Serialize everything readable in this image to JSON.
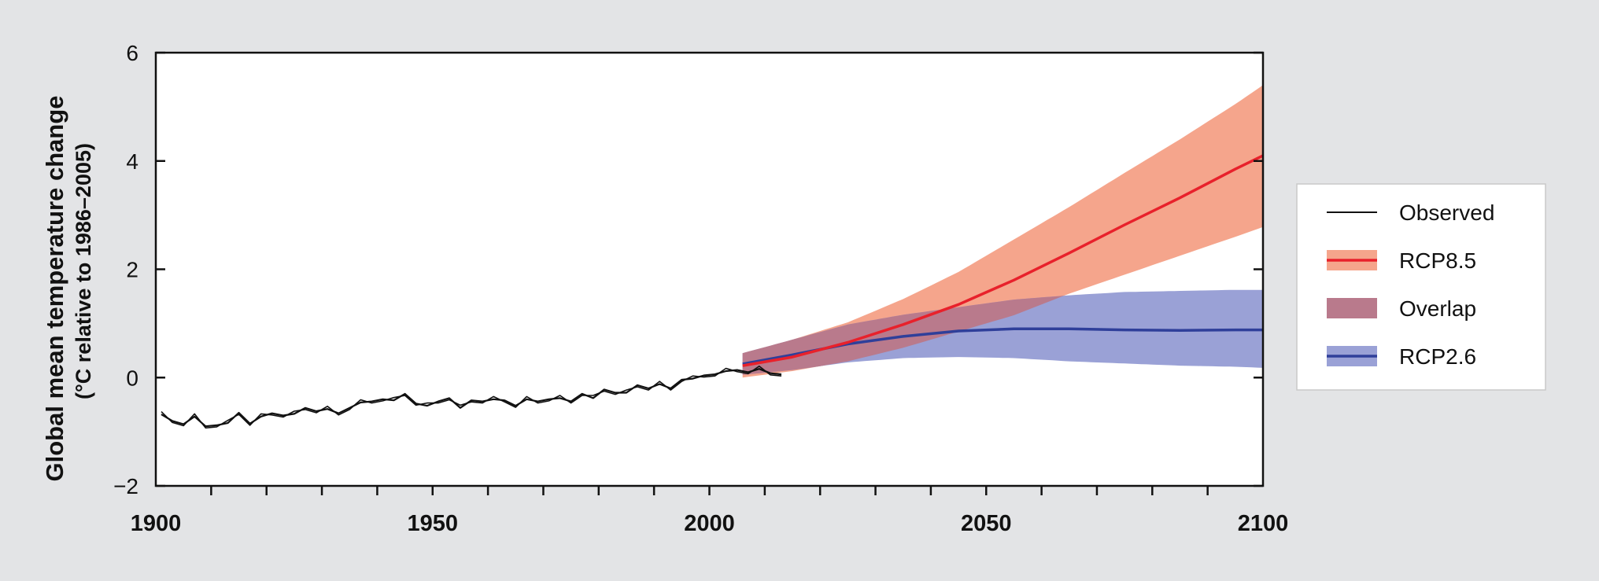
{
  "chart_data": {
    "type": "area",
    "ylabel": "Global mean temperature change",
    "ylabel_sub": "(°C relative to 1986–2005)",
    "xlim": [
      1900,
      2100
    ],
    "ylim": [
      -2,
      6
    ],
    "x_ticks_major": [
      1900,
      1950,
      2000,
      2050,
      2100
    ],
    "x_ticks_minor_step": 10,
    "y_ticks": [
      -2,
      0,
      2,
      4,
      6
    ],
    "y_tick_labels": [
      "−2",
      "0",
      "2",
      "4",
      "6"
    ],
    "grid": false,
    "legend_position": "right",
    "legend": [
      {
        "key": "observed",
        "label": "Observed"
      },
      {
        "key": "rcp85",
        "label": "RCP8.5"
      },
      {
        "key": "overlap",
        "label": "Overlap"
      },
      {
        "key": "rcp26",
        "label": "RCP2.6"
      }
    ],
    "colors": {
      "observed": "#111111",
      "rcp85_line": "#e8212b",
      "rcp85_band": "#f5a58c",
      "rcp26_line": "#2f3f9a",
      "rcp26_band": "#9aa1d6",
      "overlap": "#b97a8c"
    },
    "series": [
      {
        "name": "Observed",
        "x": [
          1901,
          1903,
          1905,
          1907,
          1909,
          1911,
          1913,
          1915,
          1917,
          1919,
          1921,
          1923,
          1925,
          1927,
          1929,
          1931,
          1933,
          1935,
          1937,
          1939,
          1941,
          1943,
          1945,
          1947,
          1949,
          1951,
          1953,
          1955,
          1957,
          1959,
          1961,
          1963,
          1965,
          1967,
          1969,
          1971,
          1973,
          1975,
          1977,
          1979,
          1981,
          1983,
          1985,
          1987,
          1989,
          1991,
          1993,
          1995,
          1997,
          1999,
          2001,
          2003,
          2005,
          2007,
          2009,
          2011,
          2013
        ],
        "y": [
          -0.68,
          -0.8,
          -0.86,
          -0.72,
          -0.9,
          -0.88,
          -0.84,
          -0.65,
          -0.85,
          -0.72,
          -0.66,
          -0.7,
          -0.67,
          -0.56,
          -0.62,
          -0.58,
          -0.66,
          -0.56,
          -0.46,
          -0.44,
          -0.4,
          -0.42,
          -0.3,
          -0.48,
          -0.52,
          -0.44,
          -0.38,
          -0.56,
          -0.42,
          -0.44,
          -0.4,
          -0.42,
          -0.52,
          -0.4,
          -0.44,
          -0.4,
          -0.38,
          -0.44,
          -0.3,
          -0.38,
          -0.22,
          -0.28,
          -0.28,
          -0.14,
          -0.2,
          -0.12,
          -0.2,
          -0.04,
          -0.02,
          0.04,
          0.06,
          0.12,
          0.14,
          0.1,
          0.16,
          0.08,
          0.06
        ]
      },
      {
        "name": "RCP8.5",
        "x": [
          2006,
          2015,
          2025,
          2035,
          2045,
          2055,
          2065,
          2075,
          2085,
          2095,
          2100
        ],
        "mean": [
          0.22,
          0.38,
          0.65,
          0.98,
          1.35,
          1.8,
          2.3,
          2.82,
          3.32,
          3.85,
          4.1
        ],
        "lower": [
          0.0,
          0.12,
          0.3,
          0.55,
          0.85,
          1.15,
          1.55,
          1.9,
          2.25,
          2.6,
          2.78
        ],
        "upper": [
          0.45,
          0.7,
          1.02,
          1.45,
          1.95,
          2.55,
          3.15,
          3.78,
          4.4,
          5.05,
          5.4
        ]
      },
      {
        "name": "RCP2.6",
        "x": [
          2006,
          2015,
          2025,
          2035,
          2045,
          2055,
          2065,
          2075,
          2085,
          2095,
          2100
        ],
        "mean": [
          0.25,
          0.42,
          0.62,
          0.76,
          0.86,
          0.9,
          0.9,
          0.88,
          0.87,
          0.88,
          0.88
        ],
        "lower": [
          0.05,
          0.14,
          0.28,
          0.36,
          0.38,
          0.36,
          0.3,
          0.26,
          0.22,
          0.2,
          0.18
        ],
        "upper": [
          0.45,
          0.7,
          0.98,
          1.16,
          1.3,
          1.44,
          1.52,
          1.58,
          1.6,
          1.62,
          1.62
        ]
      }
    ]
  }
}
